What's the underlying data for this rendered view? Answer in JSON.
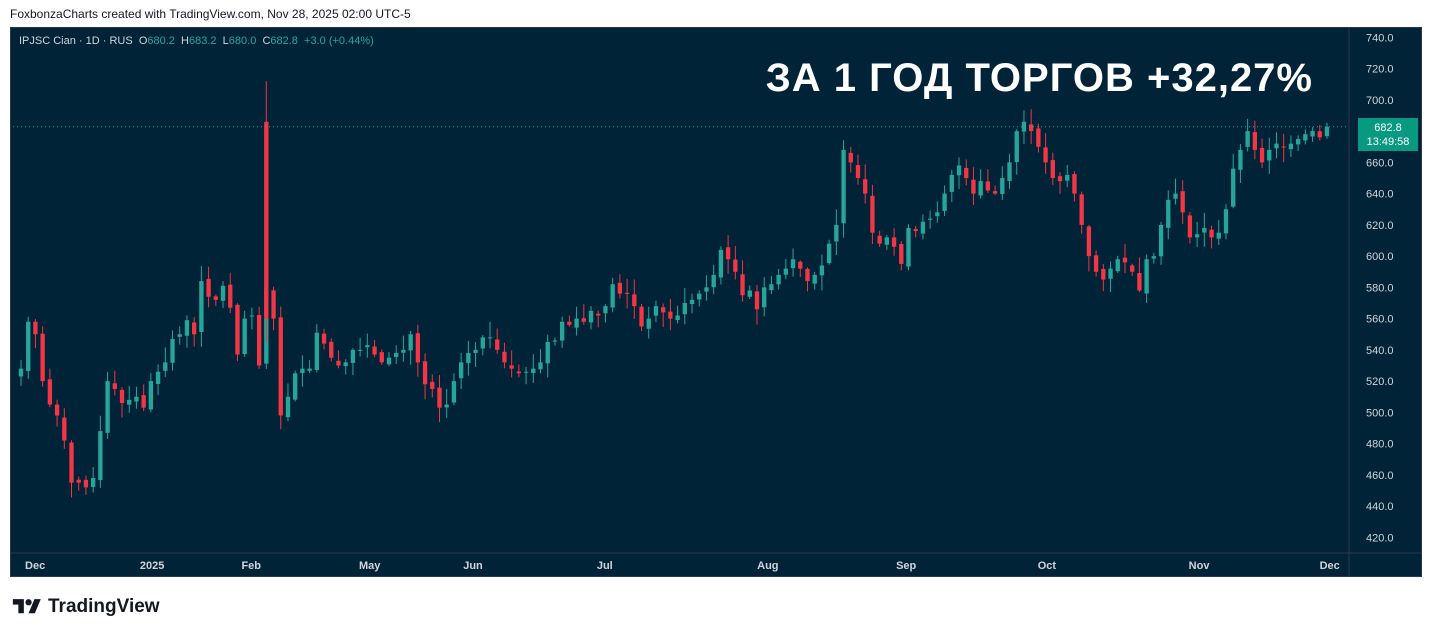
{
  "credit": "FoxbonzaCharts created with TradingView.com, Nov 28, 2025 02:00 UTC-5",
  "legend": {
    "symbol": "IPJSC Cian · 1D · RUS",
    "o_label": "O",
    "o_value": "680.2",
    "h_label": "H",
    "h_value": "683.2",
    "l_label": "L",
    "l_value": "680.0",
    "c_label": "C",
    "c_value": "682.8",
    "change": "+3.0 (+0.44%)"
  },
  "headline": "ЗА 1 ГОД ТОРГОВ +32,27%",
  "price_tag": {
    "price": "682.8",
    "countdown": "13:49:58"
  },
  "footer": {
    "brand": "TradingView"
  },
  "colors": {
    "background": "#012337",
    "up": "#26a69a",
    "down": "#f23645",
    "tag": "#089981"
  },
  "chart_data": {
    "type": "candlestick",
    "y_axis": {
      "ticks": [
        "740.0",
        "720.0",
        "700.0",
        "680.0",
        "660.0",
        "640.0",
        "620.0",
        "600.0",
        "580.0",
        "560.0",
        "540.0",
        "520.0",
        "500.0",
        "480.0",
        "460.0",
        "440.0",
        "420.0"
      ],
      "ylim": [
        410,
        746
      ]
    },
    "x_axis": {
      "ticks": [
        "Dec",
        "2025",
        "Feb",
        "May",
        "Jun",
        "Jul",
        "Aug",
        "Sep",
        "Oct",
        "Nov",
        "Dec"
      ]
    },
    "last_price": 682.8,
    "closes": [
      528,
      558,
      550,
      520,
      505,
      498,
      482,
      455,
      455,
      452,
      458,
      488,
      520,
      515,
      506,
      508,
      510,
      503,
      520,
      526,
      532,
      547,
      550,
      559,
      550,
      584,
      574,
      572,
      581,
      567,
      537,
      560,
      562,
      530,
      580,
      560,
      498,
      510,
      525,
      528,
      528,
      551,
      544,
      535,
      530,
      532,
      540,
      540,
      543,
      537,
      532,
      535,
      538,
      540,
      550,
      532,
      518,
      515,
      503,
      505,
      520,
      532,
      538,
      540,
      548,
      548,
      540,
      532,
      528,
      525,
      526,
      528,
      532,
      545,
      546,
      558,
      556,
      560,
      558,
      565,
      562,
      568,
      582,
      576,
      576,
      568,
      555,
      560,
      568,
      564,
      560,
      562,
      570,
      572,
      576,
      580,
      588,
      604,
      598,
      590,
      575,
      578,
      566,
      580,
      582,
      588,
      592,
      598,
      592,
      584,
      588,
      594,
      608,
      620,
      668,
      660,
      650,
      640,
      615,
      608,
      612,
      606,
      595,
      618,
      616,
      622,
      624,
      628,
      640,
      652,
      658,
      650,
      640,
      648,
      642,
      640,
      650,
      660,
      680,
      686,
      680,
      670,
      660,
      650,
      648,
      652,
      640,
      620,
      600,
      590,
      585,
      592,
      598,
      596,
      590,
      578,
      598,
      600,
      620,
      636,
      640,
      628,
      612,
      614,
      618,
      612,
      615,
      630,
      656,
      668,
      680,
      668,
      660,
      668,
      672,
      670,
      672,
      675,
      678,
      680,
      676,
      682.8
    ]
  }
}
